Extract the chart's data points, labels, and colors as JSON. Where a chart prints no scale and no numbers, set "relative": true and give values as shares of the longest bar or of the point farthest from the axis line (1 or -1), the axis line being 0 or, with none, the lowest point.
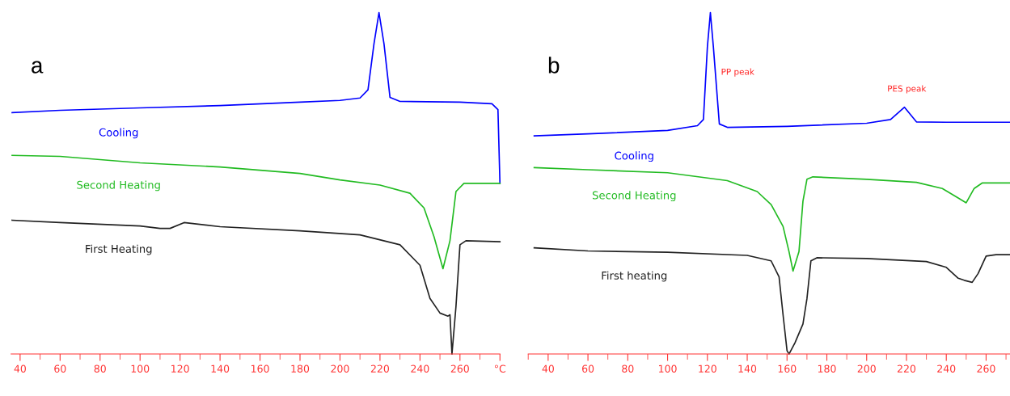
{
  "chart_data": [
    {
      "type": "line",
      "title": "a",
      "relative": true,
      "xlim": [
        35.5,
        280
      ],
      "xticks": [
        40,
        60,
        80,
        100,
        120,
        140,
        160,
        180,
        200,
        220,
        240,
        260,
        {
          "value": 280,
          "label": "°C"
        }
      ],
      "tick_labels": "x",
      "legend": false,
      "grid": false,
      "marker": "none",
      "line_style": "solid",
      "series": [
        {
          "name": "Cooling",
          "color": "#0000ff",
          "x": [
            36,
            60,
            100,
            140,
            180,
            200,
            210,
            214,
            217,
            219.5,
            222,
            225,
            230,
            260,
            276,
            279,
            280
          ],
          "values": [
            0.707,
            0.714,
            0.721,
            0.728,
            0.738,
            0.743,
            0.75,
            0.774,
            0.909,
            1.0,
            0.909,
            0.752,
            0.74,
            0.738,
            0.733,
            0.716,
            0.5
          ]
        },
        {
          "name": "Second Heating",
          "color": "#22bb22",
          "x": [
            36,
            60,
            100,
            140,
            180,
            200,
            220,
            235,
            242,
            247,
            251.5,
            255,
            258,
            262,
            280
          ],
          "values": [
            0.582,
            0.579,
            0.56,
            0.548,
            0.529,
            0.51,
            0.495,
            0.471,
            0.428,
            0.344,
            0.25,
            0.332,
            0.476,
            0.5,
            0.5
          ]
        },
        {
          "name": "First Heating",
          "color": "#222222",
          "x": [
            36,
            60,
            100,
            110,
            115,
            122,
            140,
            180,
            210,
            230,
            240,
            245,
            250,
            254,
            255,
            256,
            258,
            260,
            263,
            280
          ],
          "values": [
            0.392,
            0.385,
            0.375,
            0.368,
            0.368,
            0.385,
            0.373,
            0.361,
            0.349,
            0.32,
            0.26,
            0.163,
            0.12,
            0.111,
            0.115,
            0.0,
            0.139,
            0.32,
            0.332,
            0.329
          ]
        }
      ]
    },
    {
      "type": "line",
      "title": "b",
      "relative": true,
      "xlim": [
        30,
        272
      ],
      "xticks": [
        40,
        60,
        80,
        100,
        120,
        140,
        160,
        180,
        200,
        220,
        240,
        260
      ],
      "tick_labels": "x",
      "legend": false,
      "grid": false,
      "marker": "none",
      "line_style": "solid",
      "annotations": [
        {
          "text": "PP peak",
          "x": 124,
          "y": 0.825
        },
        {
          "text": "PES peak",
          "x": 219,
          "y": 0.723
        }
      ],
      "series": [
        {
          "name": "Cooling",
          "color": "#0000ff",
          "x": [
            33,
            60,
            100,
            115,
            118,
            120,
            121.5,
            123,
            126,
            130,
            160,
            200,
            212,
            219,
            225,
            240,
            272
          ],
          "values": [
            0.639,
            0.645,
            0.655,
            0.669,
            0.687,
            0.9,
            1.0,
            0.9,
            0.674,
            0.664,
            0.667,
            0.676,
            0.687,
            0.723,
            0.68,
            0.679,
            0.679
          ]
        },
        {
          "name": "Second Heating",
          "color": "#22bb22",
          "x": [
            33,
            60,
            100,
            130,
            145,
            152,
            158,
            161,
            163,
            166,
            168,
            170,
            173,
            200,
            225,
            238,
            246,
            250,
            254,
            258,
            272
          ],
          "values": [
            0.546,
            0.54,
            0.531,
            0.508,
            0.476,
            0.438,
            0.374,
            0.3,
            0.243,
            0.3,
            0.448,
            0.512,
            0.519,
            0.512,
            0.503,
            0.485,
            0.457,
            0.443,
            0.485,
            0.501,
            0.501
          ]
        },
        {
          "name": "First heating",
          "color": "#222222",
          "x": [
            33,
            60,
            100,
            140,
            152,
            156,
            158,
            160,
            161,
            164,
            168,
            170,
            172,
            175,
            200,
            230,
            240,
            246,
            249,
            253,
            256,
            260,
            265,
            272
          ],
          "values": [
            0.311,
            0.302,
            0.298,
            0.289,
            0.273,
            0.226,
            0.115,
            0.01,
            0.0,
            0.033,
            0.088,
            0.162,
            0.273,
            0.282,
            0.28,
            0.271,
            0.254,
            0.222,
            0.216,
            0.21,
            0.236,
            0.287,
            0.291,
            0.291
          ]
        }
      ]
    }
  ]
}
